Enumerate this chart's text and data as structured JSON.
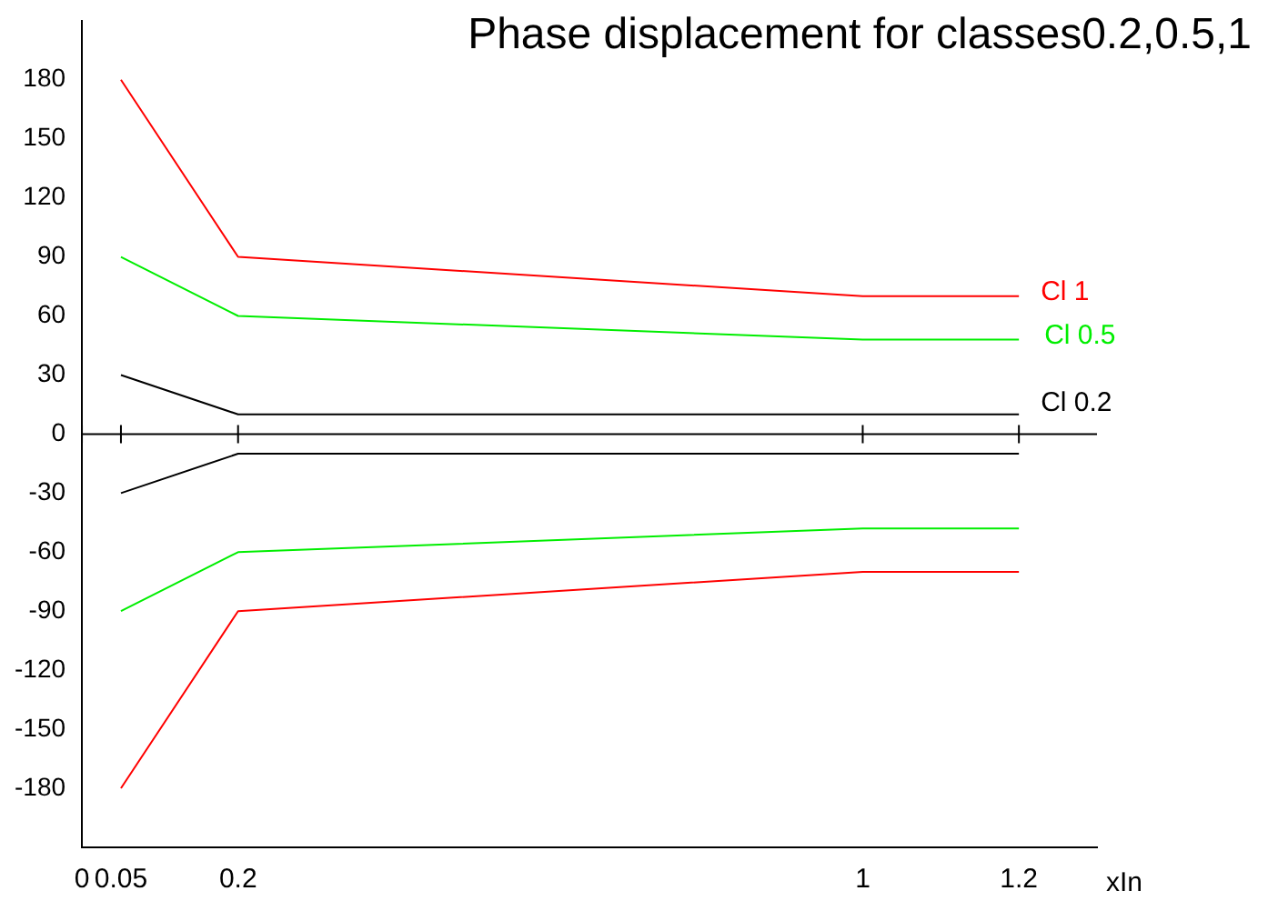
{
  "chart_data": {
    "type": "line",
    "title": "Phase displacement for classes0.2,0.5,1",
    "xlabel": "xIn",
    "x": [
      0.05,
      0.2,
      1,
      1.2
    ],
    "series": [
      {
        "name": "Cl 1",
        "color": "#ff0000",
        "values": [
          180,
          90,
          70,
          70
        ]
      },
      {
        "name": "Cl 0.5",
        "color": "#00ee00",
        "values": [
          90,
          60,
          48,
          48
        ]
      },
      {
        "name": "Cl 0.2",
        "color": "#000000",
        "values": [
          30,
          10,
          10,
          10
        ]
      },
      {
        "color": "#000000",
        "values": [
          -30,
          -10,
          -10,
          -10
        ]
      },
      {
        "color": "#00ee00",
        "values": [
          -90,
          -60,
          -48,
          -48
        ]
      },
      {
        "color": "#ff0000",
        "values": [
          -180,
          -90,
          -70,
          -70
        ]
      }
    ],
    "xlim": [
      0,
      1.3
    ],
    "xticks": [
      0,
      0.05,
      0.2,
      1,
      1.2
    ],
    "ylim": [
      -210,
      210
    ],
    "yticks": [
      -180,
      -150,
      -120,
      -90,
      -60,
      -30,
      0,
      30,
      60,
      90,
      120,
      150,
      180
    ],
    "ref_lines": [
      {
        "axis": "y",
        "value": 0,
        "color": "#000000"
      }
    ],
    "grid": false,
    "legend": false,
    "marker": "none",
    "line_style": "solid"
  }
}
